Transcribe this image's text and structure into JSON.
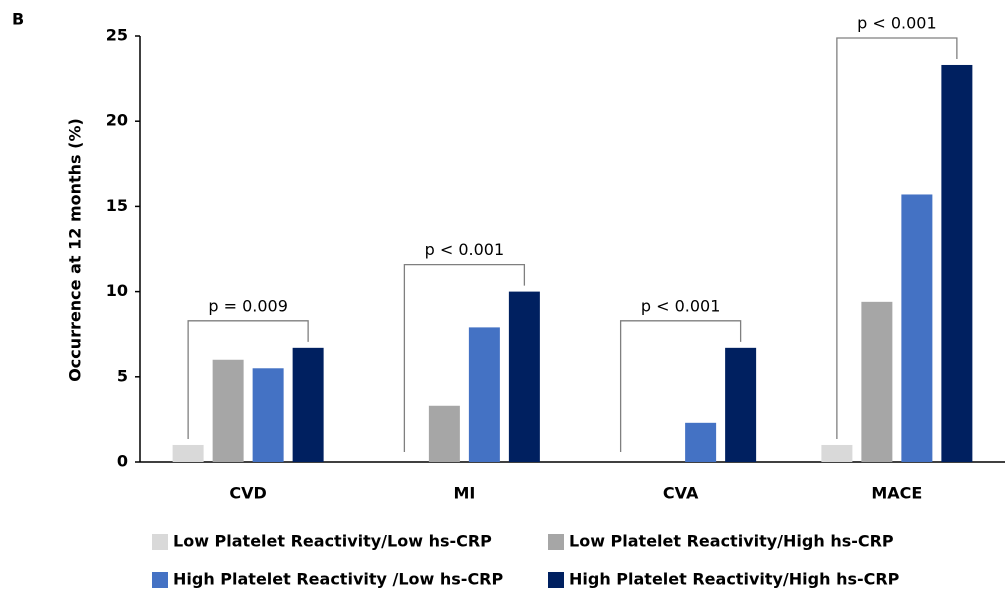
{
  "chart_data": {
    "type": "bar",
    "panel_label": "B",
    "y_label": "Occurrence at 12 months (%)",
    "categories": [
      "CVD",
      "MI",
      "CVA",
      "MACE"
    ],
    "series": [
      {
        "name": "Low Platelet Reactivity/Low hs-CRP",
        "color": "#d9d9d9",
        "values": [
          1.0,
          0,
          0,
          1.0
        ]
      },
      {
        "name": "Low Platelet Reactivity/High hs-CRP",
        "color": "#a6a6a6",
        "values": [
          6.0,
          3.3,
          0,
          9.4
        ]
      },
      {
        "name": "High Platelet Reactivity /Low hs-CRP",
        "color": "#4472c4",
        "values": [
          5.5,
          7.9,
          2.3,
          15.7
        ]
      },
      {
        "name": "High Platelet Reactivity/High hs-CRP",
        "color": "#002060",
        "values": [
          6.7,
          10.0,
          6.7,
          23.3
        ]
      }
    ],
    "annotations": [
      {
        "text": "p = 0.009",
        "category": 0
      },
      {
        "text": "p < 0.001",
        "category": 1
      },
      {
        "text": "p < 0.001",
        "category": 2
      },
      {
        "text": "p < 0.001",
        "category": 3
      }
    ],
    "ylim": [
      0,
      25
    ],
    "yticks": [
      0,
      5,
      10,
      15,
      20,
      25
    ],
    "grid": false
  }
}
